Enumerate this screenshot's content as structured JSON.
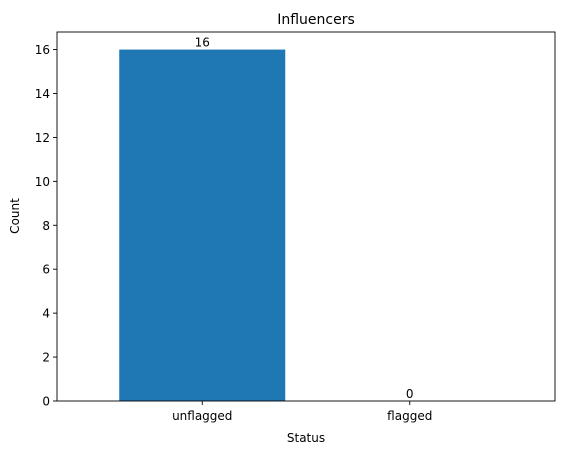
{
  "chart_data": {
    "type": "bar",
    "title": "Influencers",
    "xlabel": "Status",
    "ylabel": "Count",
    "categories": [
      "unflagged",
      "flagged"
    ],
    "values": [
      16,
      0
    ],
    "data_labels": [
      "16",
      "0"
    ],
    "ylim": [
      0,
      16.8
    ],
    "yticks": [
      0,
      2,
      4,
      6,
      8,
      10,
      12,
      14,
      16
    ],
    "ytick_labels": [
      "0",
      "2",
      "4",
      "6",
      "8",
      "10",
      "12",
      "14",
      "16"
    ],
    "bar_color": "#1f77b4",
    "grid": false,
    "legend": "none"
  }
}
